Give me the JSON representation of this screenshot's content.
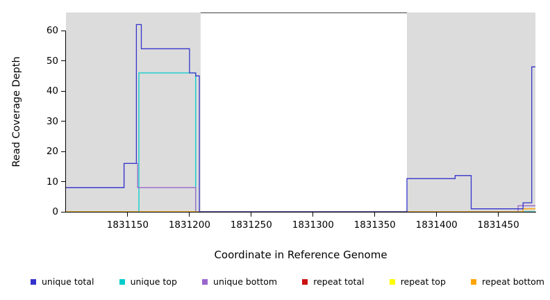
{
  "figure": {
    "background": "#ffffff"
  },
  "colors": {
    "unique_total": "#3333cc",
    "unique_top": "#00cccc",
    "unique_bottom": "#9966cc",
    "repeat_total": "#cc1111",
    "repeat_top": "#ffff00",
    "repeat_bottom": "#ffa500",
    "shading": "#dcdcdc",
    "axis": "#000000",
    "plot_border": "#404040"
  },
  "chart_data": {
    "type": "line",
    "title": "",
    "xlabel": "Coordinate in Reference Genome",
    "ylabel": "Read Coverage Depth",
    "xlim": [
      1831100,
      1831480
    ],
    "ylim": [
      0,
      66
    ],
    "x_ticks": [
      1831150,
      1831200,
      1831250,
      1831300,
      1831350,
      1831400,
      1831450
    ],
    "y_ticks": [
      0,
      10,
      20,
      30,
      40,
      50,
      60
    ],
    "grid": false,
    "legend_position": "bottom",
    "shaded_regions": [
      [
        1831100,
        1831209
      ],
      [
        1831376,
        1831480
      ]
    ],
    "series": [
      {
        "name": "repeat total",
        "color_key": "repeat_total",
        "steps": [
          [
            1831100,
            0
          ],
          [
            1831480,
            0
          ]
        ]
      },
      {
        "name": "repeat top",
        "color_key": "repeat_top",
        "steps": [
          [
            1831100,
            0
          ],
          [
            1831480,
            0
          ]
        ]
      },
      {
        "name": "unique top",
        "color_key": "unique_top",
        "steps": [
          [
            1831100,
            0
          ],
          [
            1831159,
            46
          ],
          [
            1831205,
            0
          ],
          [
            1831480,
            0
          ]
        ]
      },
      {
        "name": "unique bottom",
        "color_key": "unique_bottom",
        "steps": [
          [
            1831100,
            8
          ],
          [
            1831147,
            16
          ],
          [
            1831158,
            8
          ],
          [
            1831205,
            0
          ],
          [
            1831466,
            2
          ],
          [
            1831480,
            2
          ]
        ]
      },
      {
        "name": "repeat bottom",
        "color_key": "repeat_bottom",
        "steps": [
          [
            1831100,
            0
          ],
          [
            1831470,
            1
          ],
          [
            1831480,
            1
          ]
        ]
      },
      {
        "name": "unique total",
        "color_key": "unique_total",
        "steps": [
          [
            1831100,
            8
          ],
          [
            1831147,
            16
          ],
          [
            1831157,
            62
          ],
          [
            1831161,
            54
          ],
          [
            1831200,
            46
          ],
          [
            1831205,
            45
          ],
          [
            1831208,
            0
          ],
          [
            1831376,
            11
          ],
          [
            1831415,
            12
          ],
          [
            1831428,
            1
          ],
          [
            1831470,
            3
          ],
          [
            1831477,
            48
          ],
          [
            1831480,
            48
          ]
        ]
      }
    ],
    "legend": [
      {
        "label": "unique total",
        "color_key": "unique_total"
      },
      {
        "label": "unique top",
        "color_key": "unique_top"
      },
      {
        "label": "unique bottom",
        "color_key": "unique_bottom"
      },
      {
        "label": "repeat total",
        "color_key": "repeat_total"
      },
      {
        "label": "repeat top",
        "color_key": "repeat_top"
      },
      {
        "label": "repeat bottom",
        "color_key": "repeat_bottom"
      }
    ]
  }
}
